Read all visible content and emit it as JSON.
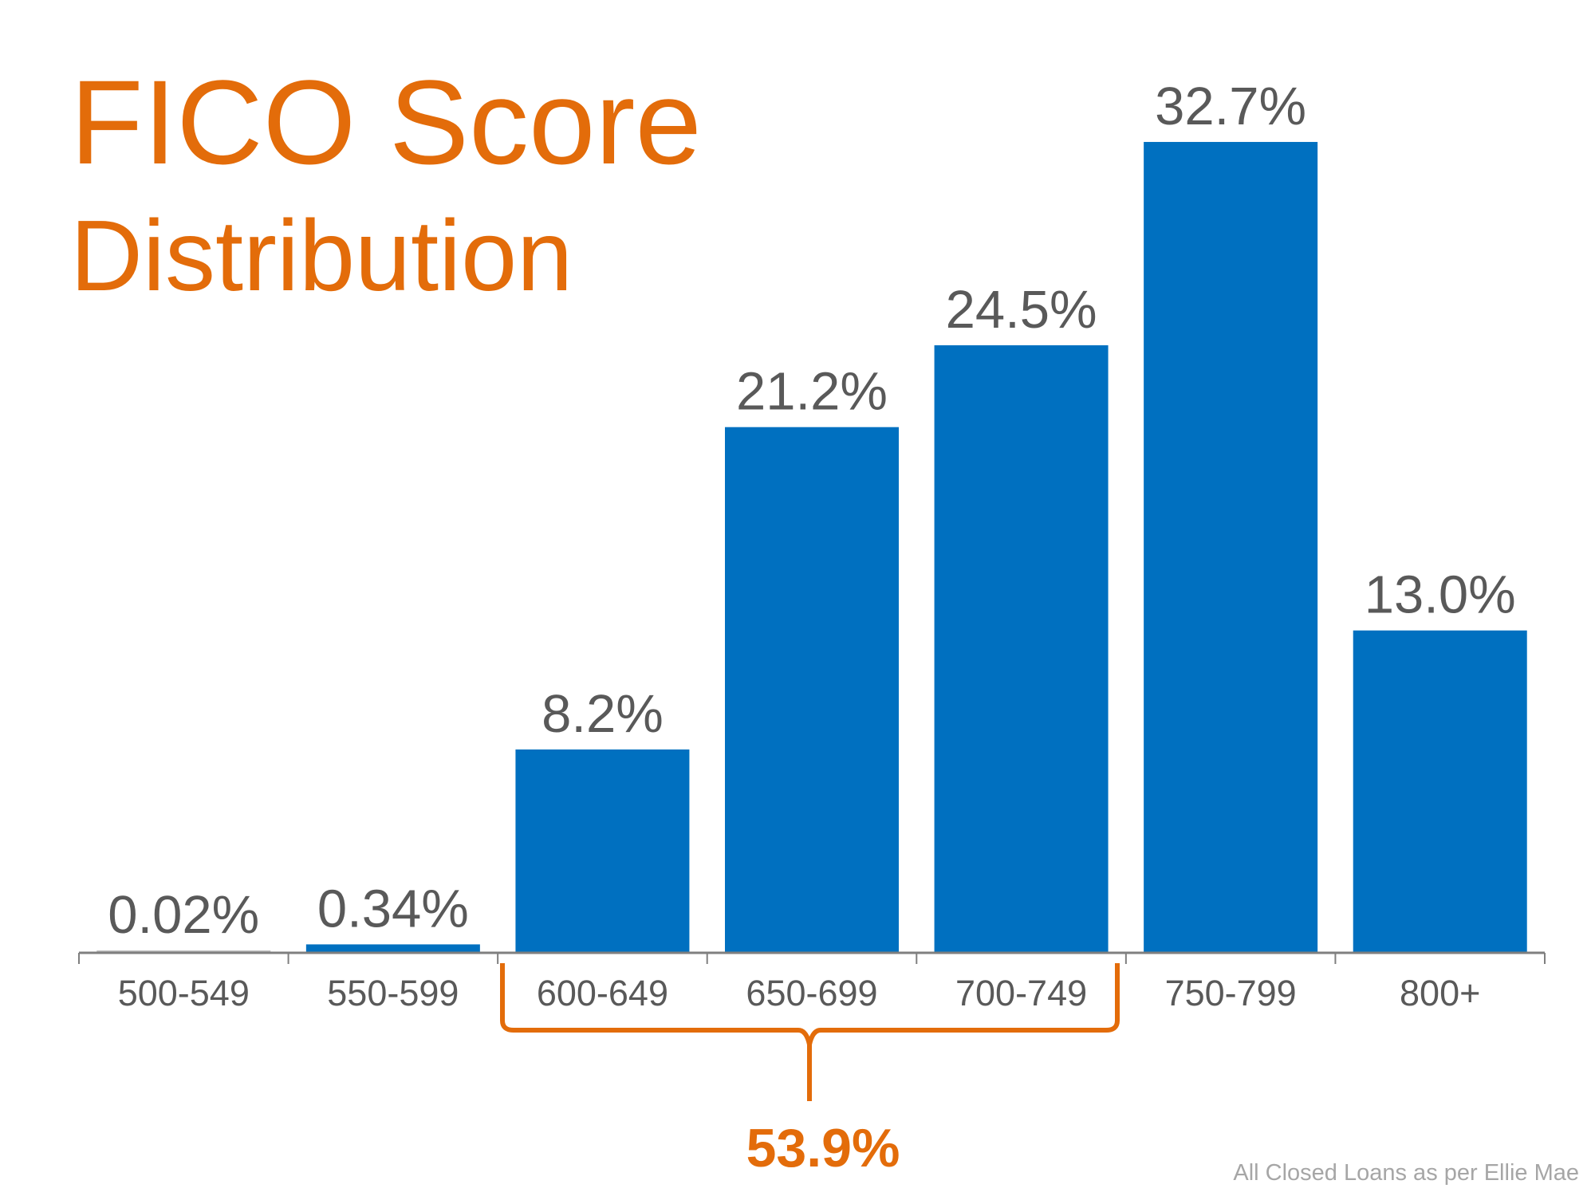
{
  "chart_data": {
    "type": "bar",
    "title": "FICO Score",
    "subtitle": "Distribution",
    "categories": [
      "500-549",
      "550-599",
      "600-649",
      "650-699",
      "700-749",
      "750-799",
      "800+"
    ],
    "values": [
      0.02,
      0.34,
      8.2,
      21.2,
      24.5,
      32.7,
      13.0
    ],
    "data_labels": [
      "0.02%",
      "0.34%",
      "8.2%",
      "21.2%",
      "24.5%",
      "32.7%",
      "13.0%"
    ],
    "xlabel": "",
    "ylabel": "",
    "ylim": [
      0,
      35
    ],
    "grid": false,
    "annotation": {
      "range": [
        "600-649",
        "700-749"
      ],
      "label": "53.9%"
    },
    "footnote": "All Closed Loans as per Ellie Mae",
    "colors": {
      "bar": "#0070C0",
      "title": "#E36C0A",
      "label": "#595959",
      "axis": "#7F7F7F"
    }
  }
}
